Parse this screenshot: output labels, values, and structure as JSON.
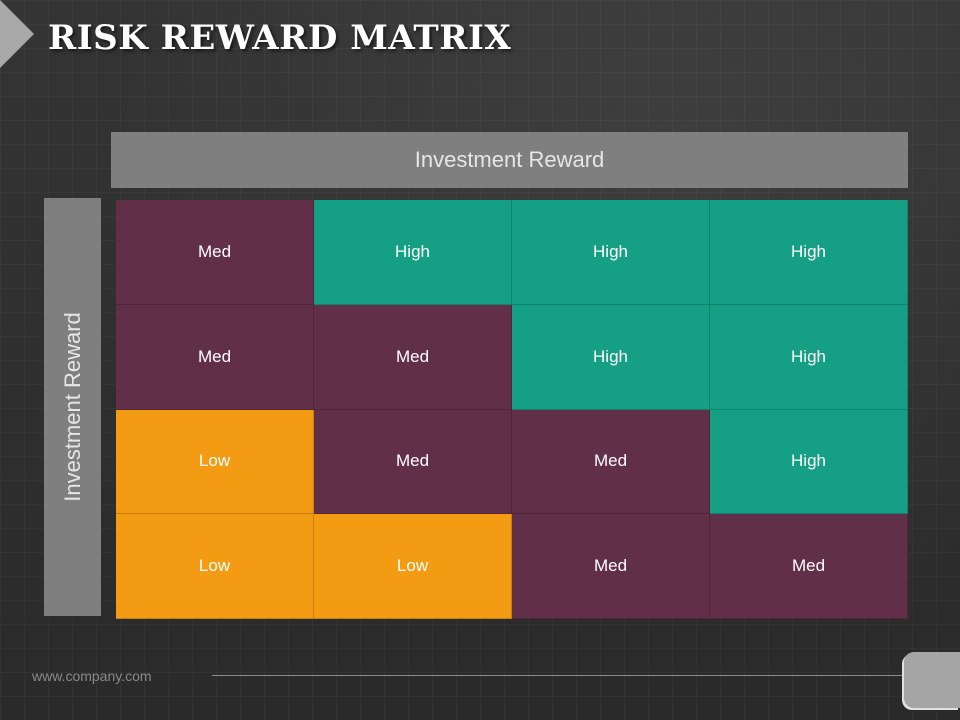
{
  "slide": {
    "title": "RISK REWARD MATRIX",
    "top_header": "Investment Reward",
    "side_header": "Investment Reward",
    "footer_url": "www.company.com"
  },
  "matrix": {
    "rows": [
      [
        "Med",
        "High",
        "High",
        "High"
      ],
      [
        "Med",
        "Med",
        "High",
        "High"
      ],
      [
        "Low",
        "Med",
        "Med",
        "High"
      ],
      [
        "Low",
        "Low",
        "Med",
        "Med"
      ]
    ]
  },
  "colors": {
    "Med": "#622f49",
    "High": "#15a085",
    "Low": "#f39c13",
    "header": "#7f7f7f"
  }
}
